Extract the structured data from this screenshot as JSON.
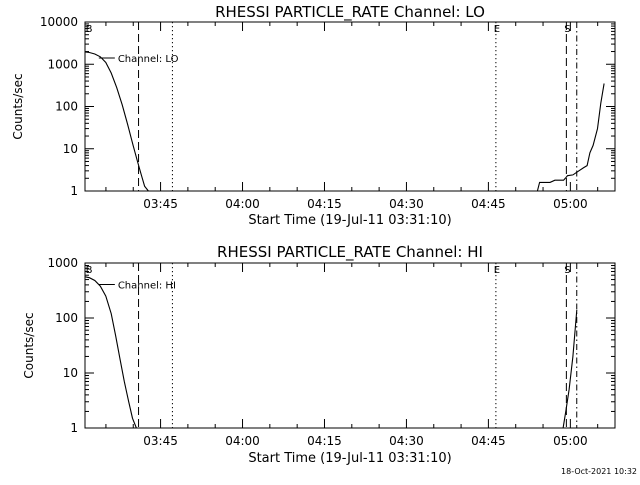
{
  "chart_data": [
    {
      "type": "line",
      "title": "RHESSI PARTICLE_RATE Channel: LO",
      "xlabel": "Start Time (19-Jul-11 03:31:10)",
      "ylabel": "Counts/sec",
      "yscale": "log",
      "ylim": [
        1,
        10000
      ],
      "xlim_minutes": [
        0,
        97
      ],
      "xticks": [
        {
          "label": "03:45",
          "minutes": 13.83
        },
        {
          "label": "04:00",
          "minutes": 28.83
        },
        {
          "label": "04:15",
          "minutes": 43.83
        },
        {
          "label": "04:30",
          "minutes": 58.83
        },
        {
          "label": "04:45",
          "minutes": 73.83
        },
        {
          "label": "05:00",
          "minutes": 88.83
        }
      ],
      "yticks": [
        {
          "label": "10000",
          "value": 10000
        },
        {
          "label": "1000",
          "value": 1000
        },
        {
          "label": "100",
          "value": 100
        },
        {
          "label": "10",
          "value": 10
        },
        {
          "label": "1",
          "value": 1
        }
      ],
      "series": [
        {
          "name": "Channel: LO",
          "x_minutes": [
            0,
            0.8,
            1.8,
            2.8,
            3.8,
            4.8,
            5.8,
            6.8,
            7.8,
            8.8,
            9.6,
            10.3,
            10.9,
            11.6,
            82.8,
            83.2,
            84.0,
            85.1,
            86.0,
            86.6,
            87.1,
            87.6,
            87.9,
            88.3,
            89.3,
            90.4,
            91.3,
            91.9,
            92.4,
            93.0,
            93.8,
            94.4,
            95.0
          ],
          "values": [
            1950,
            1900,
            1750,
            1500,
            1100,
            620,
            280,
            110,
            38,
            12,
            5,
            2.4,
            1.3,
            1,
            1,
            1.6,
            1.6,
            1.6,
            1.8,
            1.8,
            1.8,
            1.8,
            2,
            2.3,
            2.4,
            3,
            3.6,
            4,
            8,
            12,
            30,
            120,
            350
          ]
        }
      ],
      "annotations": [
        {
          "text": "Channel: LO"
        },
        {
          "text": "E"
        },
        {
          "text": "S"
        }
      ],
      "markers": [
        {
          "minutes": 9.8,
          "style": "dashed"
        },
        {
          "minutes": 16.0,
          "style": "dotted"
        },
        {
          "minutes": 75.2,
          "style": "dotted",
          "label": "E"
        },
        {
          "minutes": 88.1,
          "style": "dashed",
          "label": "S"
        },
        {
          "minutes": 90.0,
          "style": "dashdot"
        }
      ],
      "begin_marker": "B"
    },
    {
      "type": "line",
      "title": "RHESSI PARTICLE_RATE Channel: HI",
      "xlabel": "Start Time (19-Jul-11 03:31:10)",
      "ylabel": "Counts/sec",
      "yscale": "log",
      "ylim": [
        1,
        1000
      ],
      "xlim_minutes": [
        0,
        97
      ],
      "xticks": [
        {
          "label": "03:45",
          "minutes": 13.83
        },
        {
          "label": "04:00",
          "minutes": 28.83
        },
        {
          "label": "04:15",
          "minutes": 43.83
        },
        {
          "label": "04:30",
          "minutes": 58.83
        },
        {
          "label": "04:45",
          "minutes": 73.83
        },
        {
          "label": "05:00",
          "minutes": 88.83
        }
      ],
      "yticks": [
        {
          "label": "1000",
          "value": 1000
        },
        {
          "label": "100",
          "value": 100
        },
        {
          "label": "10",
          "value": 10
        },
        {
          "label": "1",
          "value": 1
        }
      ],
      "series": [
        {
          "name": "Channel: HI",
          "x_minutes": [
            0,
            0.8,
            1.8,
            2.8,
            3.8,
            4.8,
            5.6,
            6.4,
            7.2,
            8.0,
            8.7,
            9.4,
            87.5,
            88.0,
            88.6,
            89.3,
            90.0
          ],
          "values": [
            560,
            540,
            480,
            380,
            250,
            120,
            48,
            18,
            7,
            3,
            1.5,
            1,
            1,
            2,
            5,
            20,
            140
          ]
        }
      ],
      "annotations": [
        {
          "text": "Channel: HI"
        },
        {
          "text": "E"
        },
        {
          "text": "S"
        }
      ],
      "markers": [
        {
          "minutes": 9.8,
          "style": "dashed"
        },
        {
          "minutes": 16.0,
          "style": "dotted"
        },
        {
          "minutes": 75.2,
          "style": "dotted",
          "label": "E"
        },
        {
          "minutes": 88.1,
          "style": "dashed",
          "label": "S"
        },
        {
          "minutes": 90.0,
          "style": "dashdot"
        }
      ],
      "begin_marker": "B"
    }
  ],
  "footer": {
    "timestamp": "18-Oct-2021 10:32"
  }
}
